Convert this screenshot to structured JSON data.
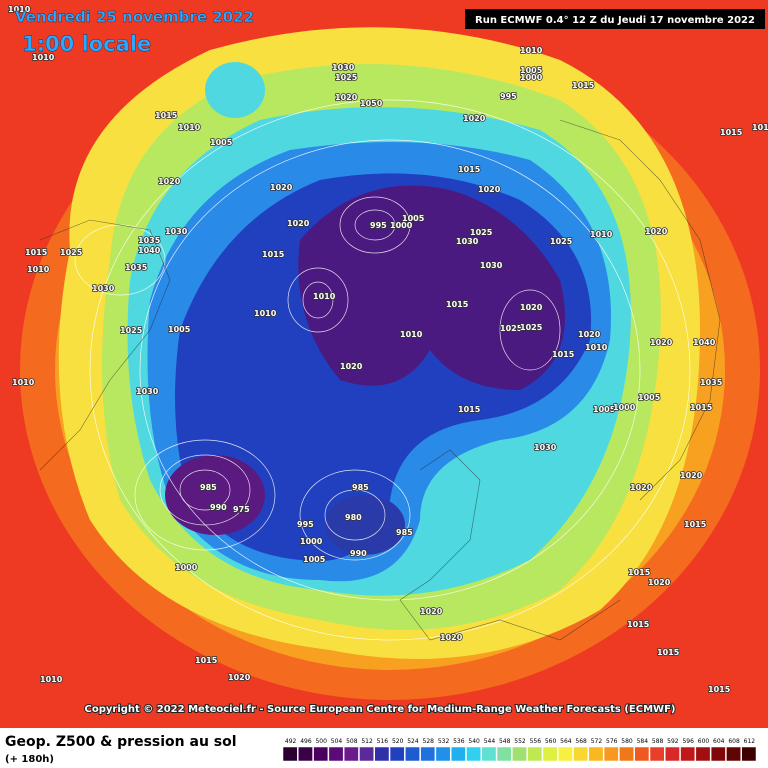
{
  "header": {
    "date": "Vendredi 25 novembre 2022",
    "time": "1:00 locale",
    "run": "Run ECMWF 0.4° 12 Z du Jeudi 17 novembre 2022"
  },
  "map": {
    "pressure_labels": [
      "1010",
      "1010",
      "1015",
      "1010",
      "1005",
      "1030",
      "1025",
      "1020",
      "1050",
      "1010",
      "1005",
      "1000",
      "995",
      "1015",
      "1020",
      "1020",
      "1020",
      "1025",
      "1015",
      "1010",
      "1035",
      "1040",
      "1035",
      "1030",
      "1030",
      "1025",
      "1005",
      "1010",
      "1010",
      "1020",
      "995",
      "1000",
      "1005",
      "1030",
      "1025",
      "1015",
      "1020",
      "1025",
      "1030",
      "1010",
      "1015",
      "1010",
      "1020",
      "1015",
      "1010",
      "1025",
      "1020",
      "1025",
      "1020",
      "1015",
      "1020",
      "1005",
      "1000",
      "1005",
      "1015",
      "1030",
      "1030",
      "1040",
      "1020",
      "1035",
      "1015",
      "1015",
      "1010",
      "985",
      "990",
      "975",
      "985",
      "980",
      "985",
      "995",
      "1000",
      "1005",
      "990",
      "1000",
      "1020",
      "1020",
      "1020",
      "1020",
      "1015",
      "1015",
      "1015",
      "1015",
      "1015",
      "1020",
      "1020",
      "1010",
      "1010",
      "1015"
    ],
    "contour_color": "#ffffff"
  },
  "copyright": "Copyright © 2022 Meteociel.fr - Source European Centre for Medium-Range Weather Forecasts (ECMWF)",
  "legend": {
    "title": "Geop. Z500 & pression au sol",
    "subtitle": "(+ 180h)",
    "levels": [
      492,
      496,
      500,
      504,
      508,
      512,
      516,
      520,
      524,
      528,
      532,
      536,
      540,
      544,
      548,
      552,
      556,
      560,
      564,
      568,
      572,
      576,
      580,
      584,
      588,
      592,
      596,
      600,
      604,
      608,
      612
    ],
    "colors": [
      "#2a0030",
      "#3a0048",
      "#4b0060",
      "#5c0a78",
      "#6a1a8a",
      "#5a2a9a",
      "#3030a8",
      "#2040c0",
      "#1e5ad0",
      "#2070e0",
      "#2090e8",
      "#20b0f0",
      "#30d0f0",
      "#60e0d0",
      "#80e0a0",
      "#a0e070",
      "#c0e850",
      "#e0f040",
      "#f8f040",
      "#f8d830",
      "#f8b820",
      "#f89820",
      "#f07818",
      "#f05820",
      "#e84028",
      "#d82828",
      "#c01818",
      "#a01010",
      "#800808",
      "#600404",
      "#400000"
    ]
  }
}
